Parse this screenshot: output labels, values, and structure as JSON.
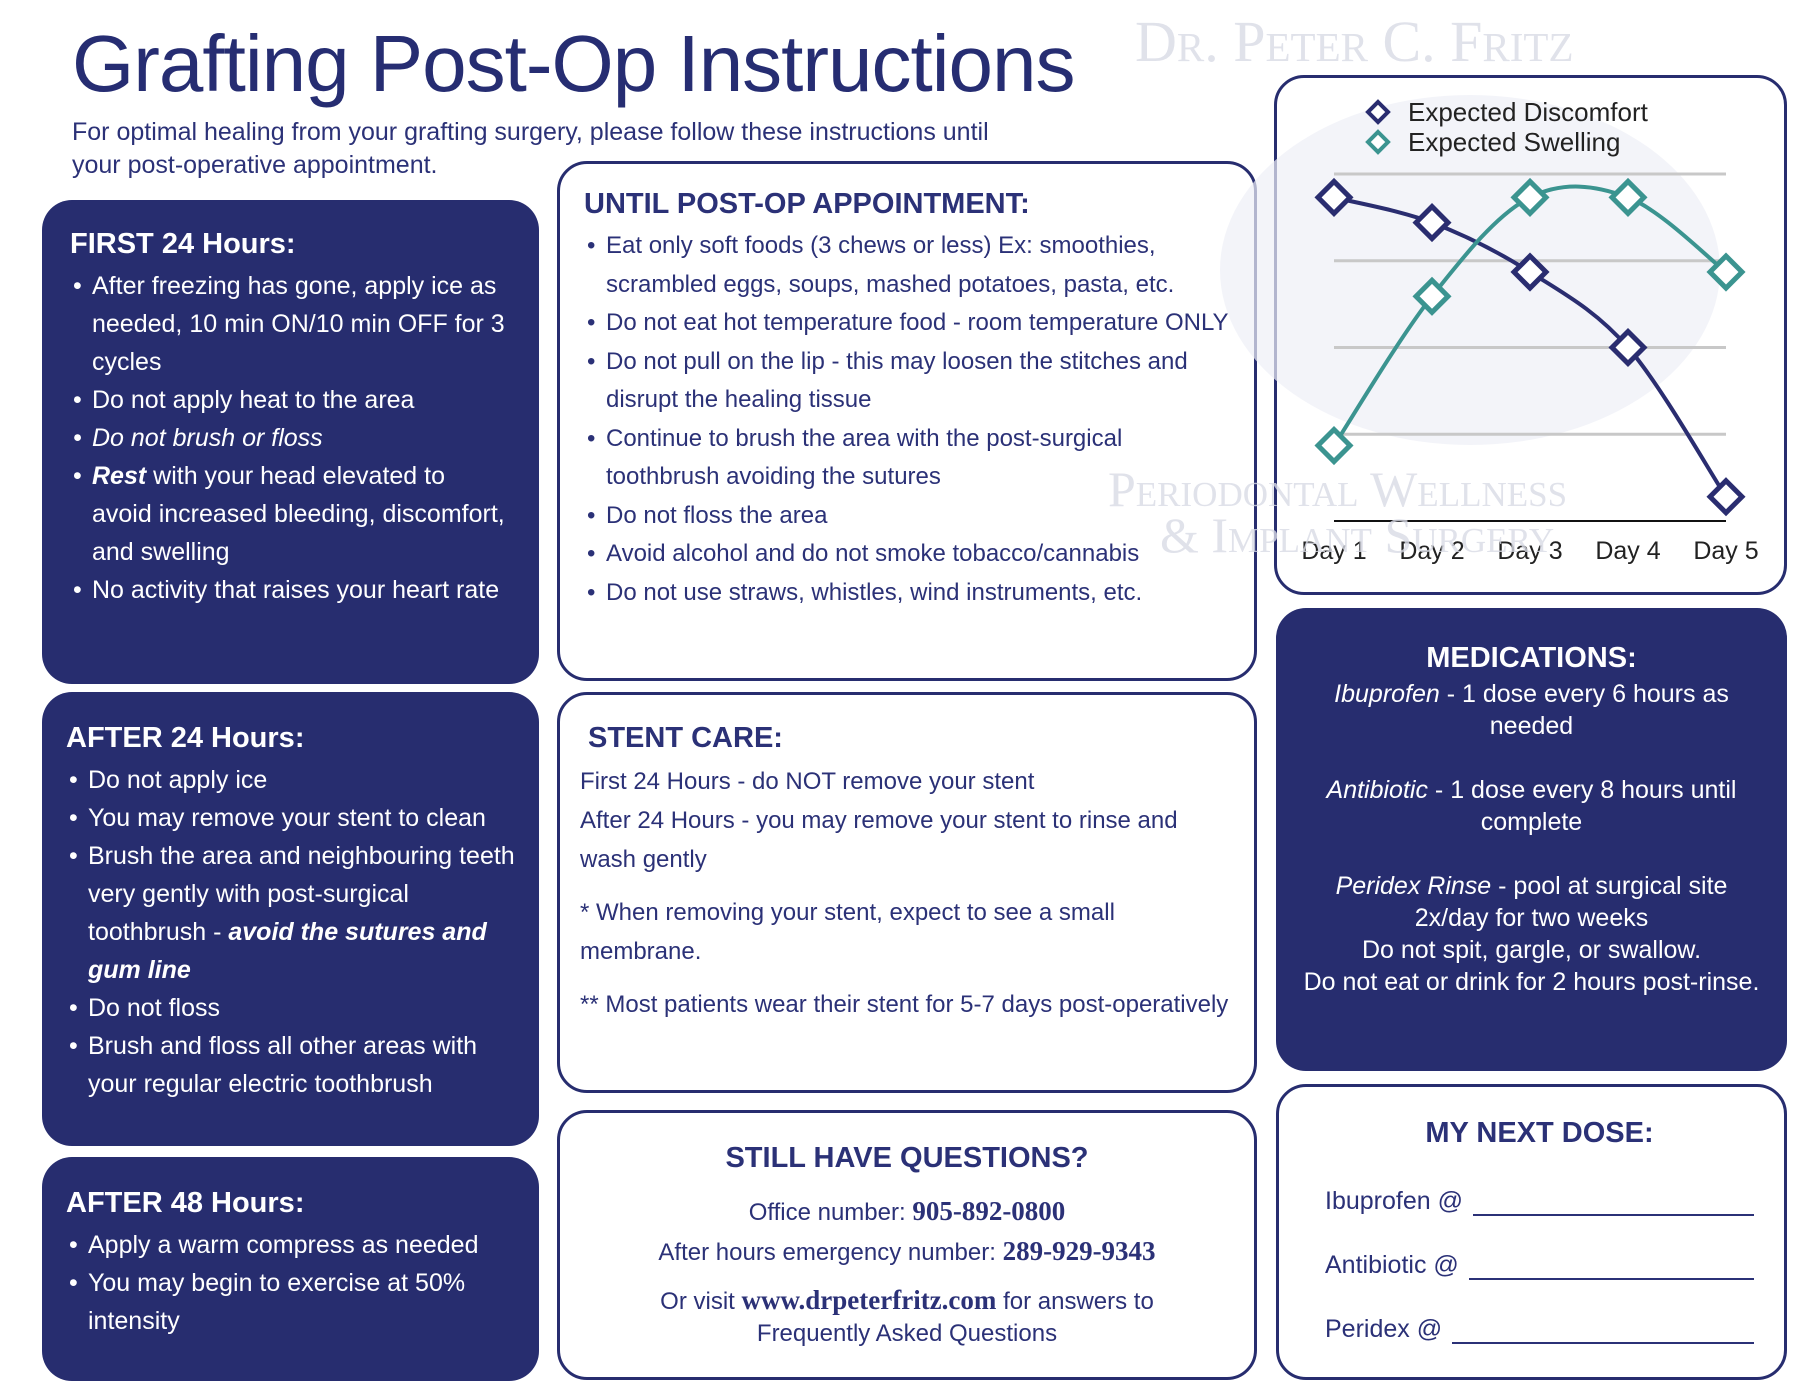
{
  "header": {
    "title": "Grafting Post-Op Instructions",
    "subtitle": [
      "For optimal healing from your grafting surgery, please follow these instructions until",
      "your post-operative appointment."
    ]
  },
  "watermark": {
    "name": "Dr. Peter C. Fritz",
    "practice": [
      "Periodontal Wellness",
      "& Implant Surgery"
    ]
  },
  "first_24": {
    "heading": "FIRST 24 Hours:",
    "items": [
      "After freezing has gone, apply ice as needed, 10 min ON/10 min OFF for 3 cycles",
      "Do not apply heat to the area",
      "Do not brush or floss",
      [
        "Rest",
        " with your head elevated to avoid increased bleeding, discomfort, and swelling"
      ],
      "No activity that raises your heart rate"
    ]
  },
  "after_24": {
    "heading": "AFTER 24 Hours:",
    "items": [
      "Do not apply ice",
      "You may remove your stent to clean",
      [
        "Brush the area and neighbouring teeth very gently with post-surgical toothbrush - ",
        "avoid the sutures and gum line"
      ],
      "Do not floss",
      "Brush and floss all other areas with your regular electric toothbrush"
    ]
  },
  "after_48": {
    "heading": "AFTER 48 Hours:",
    "items": [
      "Apply a warm compress as needed",
      "You may begin to exercise at 50% intensity"
    ]
  },
  "until_appointment": {
    "heading": "UNTIL POST-OP APPOINTMENT:",
    "items": [
      "Eat only soft foods (3 chews or less) Ex: smoothies, scrambled eggs, soups, mashed potatoes, pasta, etc.",
      "Do not eat hot temperature food - room temperature ONLY",
      "Do not pull on the lip - this may loosen the stitches and disrupt the healing tissue",
      "Continue to brush the area with the post-surgical toothbrush avoiding the sutures",
      "Do not floss the area",
      "Avoid alcohol and do not smoke tobacco/cannabis",
      "Do not use straws, whistles, wind instruments, etc."
    ]
  },
  "stent_care": {
    "heading": "STENT CARE:",
    "paragraphs": [
      "First 24 Hours - do NOT remove your stent",
      "After 24 Hours - you may remove your stent to rinse and wash gently",
      "* When removing your stent, expect to see a small membrane.",
      "** Most patients wear their stent for 5-7 days post-operatively"
    ]
  },
  "questions": {
    "heading": "STILL HAVE QUESTIONS?",
    "office": [
      "Office number: ",
      "905-892-0800"
    ],
    "emergency": [
      "After hours emergency number: ",
      "289-929-9343"
    ],
    "visit": [
      "Or visit ",
      "www.drpeterfritz.com",
      " for answers to",
      "Frequently Asked Questions"
    ]
  },
  "medications": {
    "heading": "MEDICATIONS:",
    "entries": [
      {
        "name": "Ibuprofen",
        "text": [
          "- 1 dose every 6 hours as needed"
        ]
      },
      {
        "name": "Antibiotic",
        "text": [
          "- 1 dose every 8 hours until complete"
        ]
      },
      {
        "name": "Peridex Rinse",
        "text": [
          "- pool at surgical site 2x/day for two weeks",
          "Do not spit, gargle, or swallow.",
          "Do not eat or drink for 2 hours post-rinse."
        ]
      }
    ]
  },
  "next_dose": {
    "heading": "MY NEXT DOSE:",
    "items": [
      "Ibuprofen @",
      "Antibiotic @",
      "Peridex @"
    ]
  },
  "chart_data": {
    "type": "line",
    "categories": [
      "Day 1",
      "Day 2",
      "Day 3",
      "Day 4",
      "Day 5"
    ],
    "series": [
      {
        "name": "Expected Discomfort",
        "color": "#2a2d70",
        "values": [
          3.73,
          3.44,
          2.87,
          2.0,
          0.28
        ]
      },
      {
        "name": "Expected Swelling",
        "color": "#3b9490",
        "values": [
          0.87,
          2.59,
          3.73,
          3.73,
          2.87
        ]
      }
    ],
    "ylim": [
      0,
      4
    ],
    "yticks": [
      1,
      2,
      3,
      4
    ],
    "grid": true
  }
}
